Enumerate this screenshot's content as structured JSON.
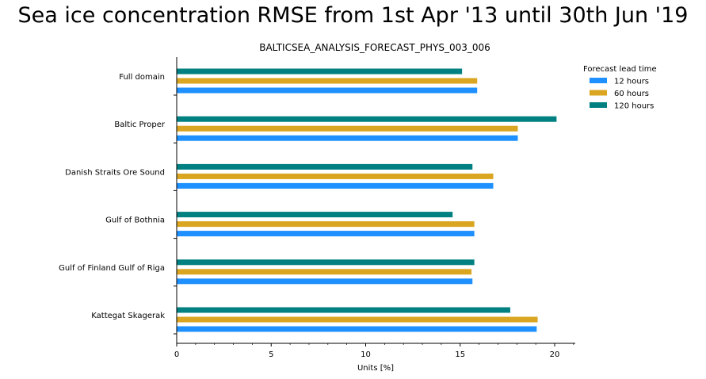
{
  "figure": {
    "title": "Sea ice concentration RMSE from 1st Apr '13 until 30th Jun '19"
  },
  "chart_data": {
    "type": "bar",
    "orientation": "horizontal",
    "title": "BALTICSEA_ANALYSIS_FORECAST_PHYS_003_006",
    "xlabel": "Units [%]",
    "ylabel": "",
    "xlim": [
      0,
      21.1
    ],
    "xticks": [
      0,
      5,
      10,
      15,
      20
    ],
    "grid": false,
    "legend": {
      "title": "Forecast lead time",
      "placement": "top-right outside"
    },
    "categories": [
      "Full domain",
      "Baltic Proper",
      "Danish Straits Ore Sound",
      "Gulf of Bothnia",
      "Gulf of Finland Gulf of Riga",
      "Kattegat Skagerak"
    ],
    "series": [
      {
        "name": "12 hours",
        "color": "#1e90ff",
        "values": [
          15.9,
          18.05,
          16.75,
          15.75,
          15.65,
          19.05
        ]
      },
      {
        "name": "60 hours",
        "color": "#daa520",
        "values": [
          15.9,
          18.05,
          16.75,
          15.75,
          15.6,
          19.1
        ]
      },
      {
        "name": "120 hours",
        "color": "#008080",
        "values": [
          15.1,
          20.1,
          15.65,
          14.6,
          15.75,
          17.65
        ]
      }
    ]
  }
}
